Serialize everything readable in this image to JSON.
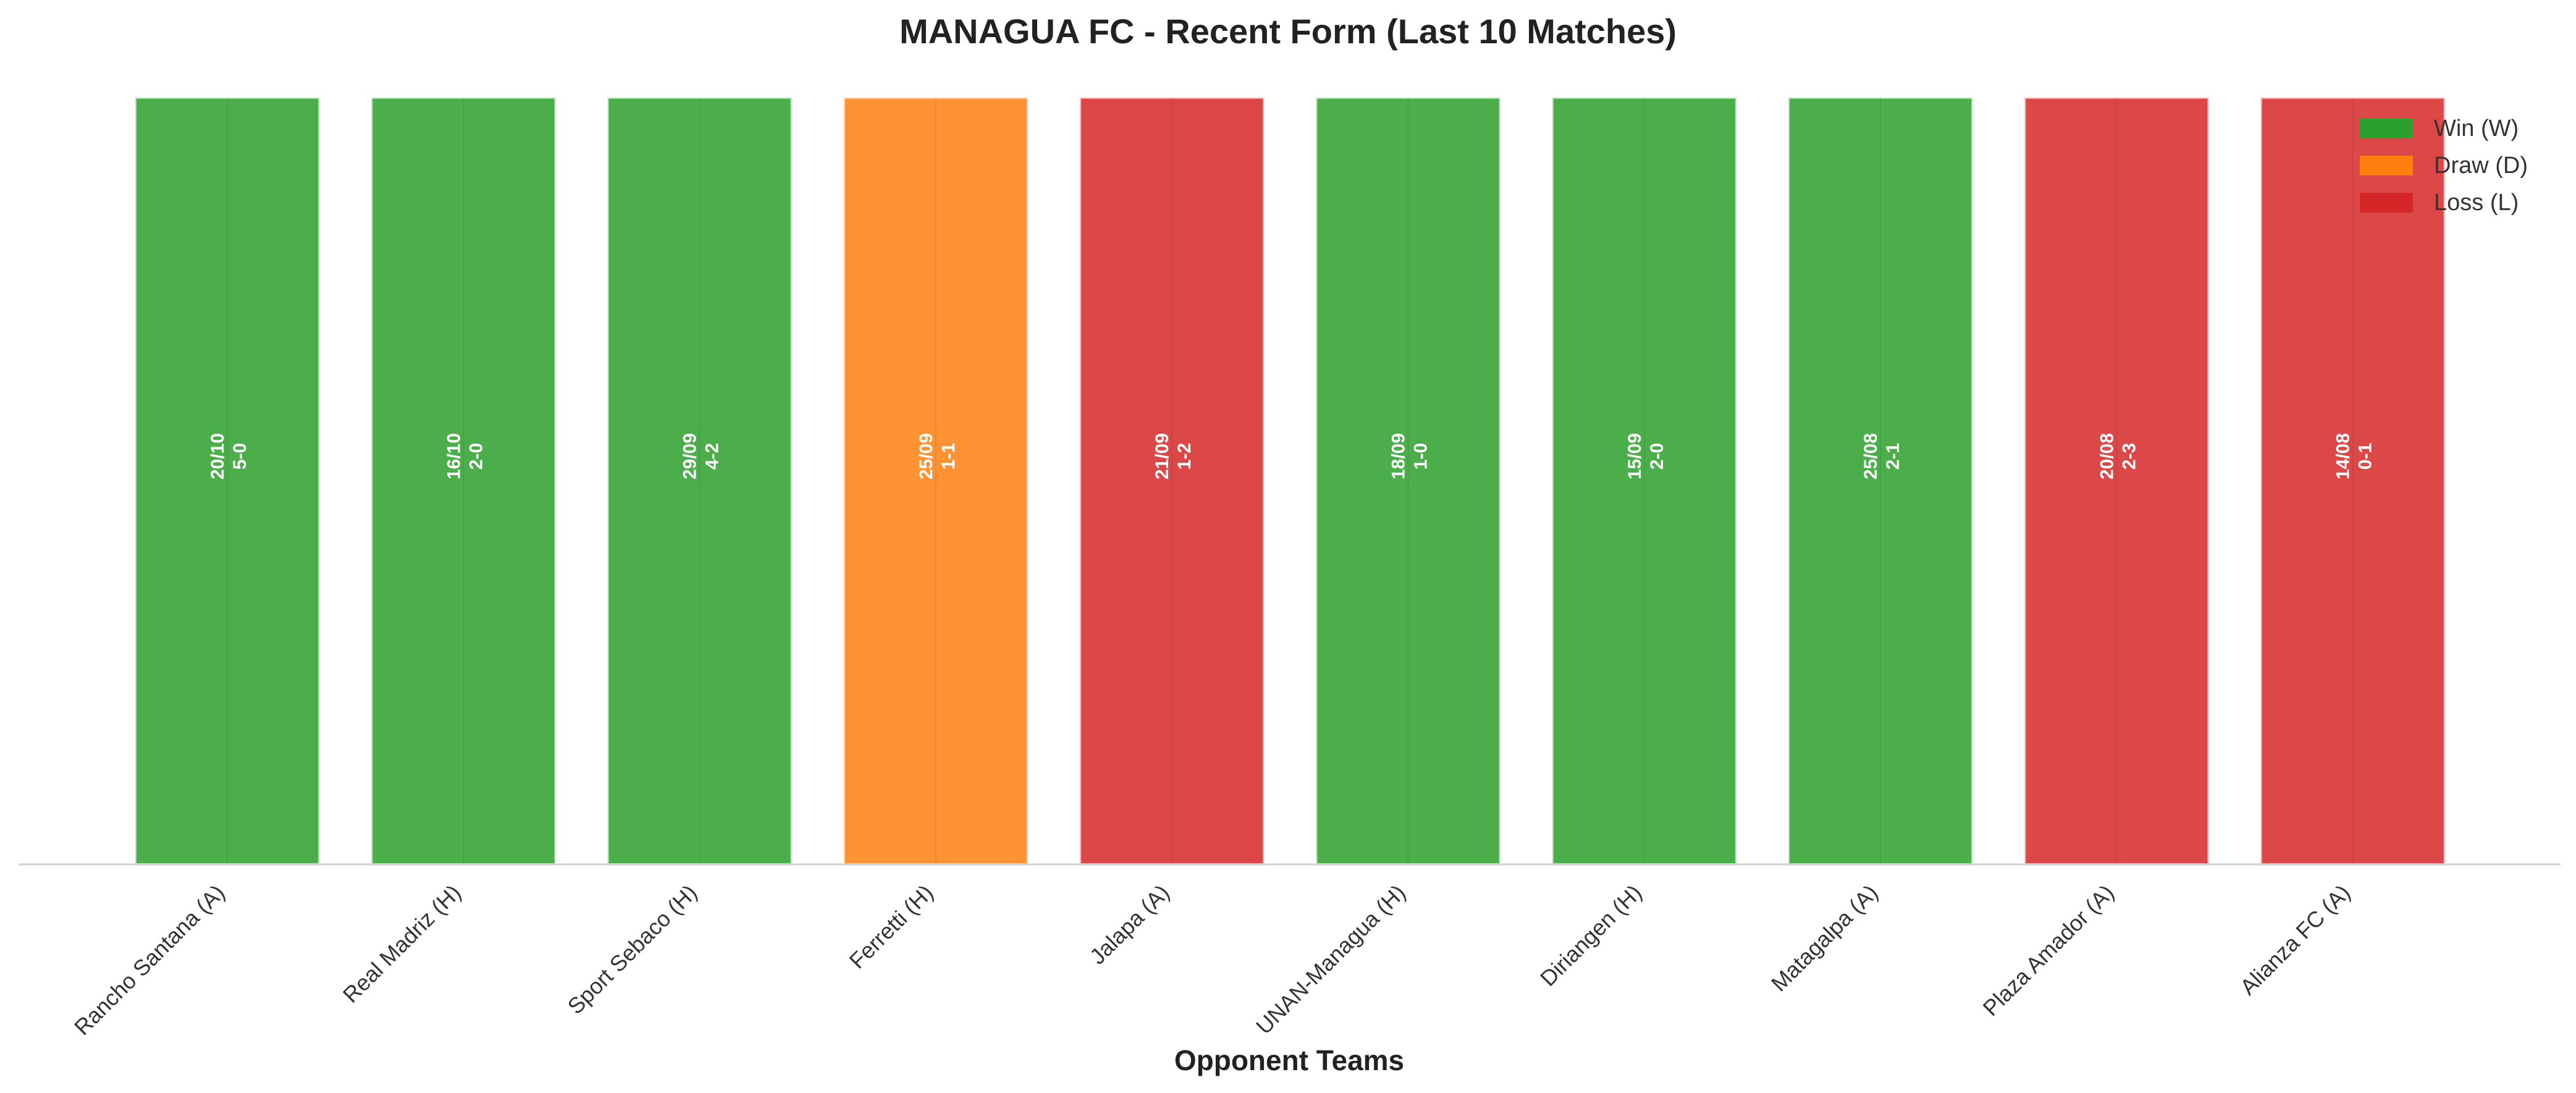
{
  "chart_data": {
    "type": "bar",
    "title": "MANAGUA FC - Recent Form (Last 10 Matches)",
    "xlabel": "Opponent Teams",
    "ylabel": "",
    "ylim": [
      0,
      1
    ],
    "grid": false,
    "legend_position": "top-right",
    "categories": [
      "Rancho Santana (A)",
      "Real Madriz (H)",
      "Sport Sebaco (H)",
      "Ferretti (H)",
      "Jalapa (A)",
      "UNAN-Managua (H)",
      "Diriangen (H)",
      "Matagalpa (A)",
      "Plaza Amador (A)",
      "Alianza FC (A)"
    ],
    "values": [
      1,
      1,
      1,
      1,
      1,
      1,
      1,
      1,
      1,
      1
    ],
    "results": [
      "W",
      "W",
      "W",
      "D",
      "L",
      "W",
      "W",
      "W",
      "L",
      "L"
    ],
    "dates": [
      "20/10",
      "16/10",
      "29/09",
      "25/09",
      "21/09",
      "18/09",
      "15/09",
      "25/08",
      "20/08",
      "14/08"
    ],
    "scores": [
      "5-0",
      "2-0",
      "4-2",
      "1-1",
      "1-2",
      "1-0",
      "2-0",
      "2-1",
      "2-3",
      "0-1"
    ],
    "legend": [
      {
        "key": "W",
        "label": "Win (W)",
        "color": "#2ca02c"
      },
      {
        "key": "D",
        "label": "Draw (D)",
        "color": "#ff7f0e"
      },
      {
        "key": "L",
        "label": "Loss (L)",
        "color": "#d62728"
      }
    ],
    "colors": {
      "W": "#2ca02c",
      "D": "#ff7f0e",
      "L": "#d62728"
    }
  }
}
